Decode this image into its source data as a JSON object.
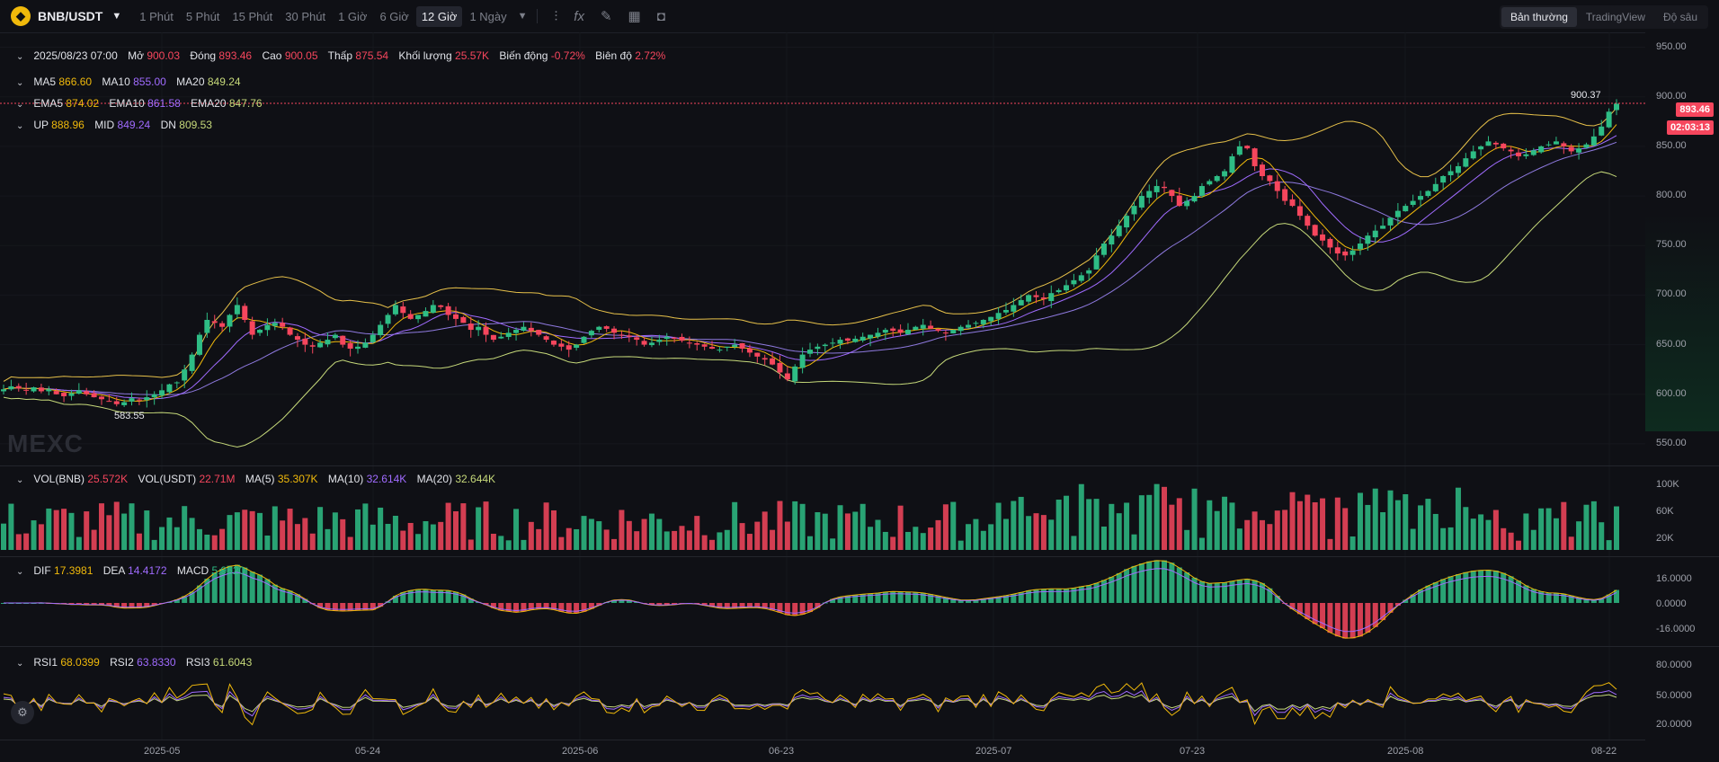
{
  "toolbar": {
    "symbol": "BNB/USDT",
    "intervals": [
      "1 Phút",
      "5 Phút",
      "15 Phút",
      "30 Phút",
      "1 Giờ",
      "6 Giờ",
      "12 Giờ",
      "1 Ngày"
    ],
    "active_interval": "12 Giờ",
    "view_tabs": [
      "Bản thường",
      "TradingView",
      "Độ sâu"
    ],
    "active_view": "Bản thường"
  },
  "ohlc": {
    "date": "2025/08/23 07:00",
    "open_label": "Mở",
    "open": "900.03",
    "close_label": "Đóng",
    "close": "893.46",
    "high_label": "Cao",
    "high": "900.05",
    "low_label": "Thấp",
    "low": "875.54",
    "vol_label": "Khối lượng",
    "vol": "25.57K",
    "change_label": "Biến động",
    "change": "-0.72%",
    "amp_label": "Biên độ",
    "amp": "2.72%"
  },
  "ma": {
    "ma5_label": "MA5",
    "ma5": "866.60",
    "ma10_label": "MA10",
    "ma10": "855.00",
    "ma20_label": "MA20",
    "ma20": "849.24"
  },
  "ema": {
    "ema5_label": "EMA5",
    "ema5": "874.02",
    "ema10_label": "EMA10",
    "ema10": "861.58",
    "ema20_label": "EMA20",
    "ema20": "847.76"
  },
  "boll": {
    "up_label": "UP",
    "up": "888.96",
    "mid_label": "MID",
    "mid": "849.24",
    "dn_label": "DN",
    "dn": "809.53"
  },
  "price_axis": [
    "950.00",
    "900.00",
    "850.00",
    "800.00",
    "750.00",
    "700.00",
    "650.00",
    "600.00",
    "550.00"
  ],
  "last_price": "893.46",
  "countdown": "02:03:13",
  "high_annot": "900.37",
  "low_annot": "583.55",
  "watermark": "MEXC",
  "volume": {
    "vol_bnb_label": "VOL(BNB)",
    "vol_bnb": "25.572K",
    "vol_usdt_label": "VOL(USDT)",
    "vol_usdt": "22.71M",
    "ma5_label": "MA(5)",
    "ma5": "35.307K",
    "ma10_label": "MA(10)",
    "ma10": "32.614K",
    "ma20_label": "MA(20)",
    "ma20": "32.644K",
    "axis": [
      "100K",
      "60K",
      "20K"
    ]
  },
  "macd": {
    "dif_label": "DIF",
    "dif": "17.3981",
    "dea_label": "DEA",
    "dea": "14.4172",
    "macd_label": "MACD",
    "macd": "5.9620",
    "axis": [
      "16.0000",
      "0.0000",
      "-16.0000"
    ]
  },
  "rsi": {
    "rsi1_label": "RSI1",
    "rsi1": "68.0399",
    "rsi2_label": "RSI2",
    "rsi2": "63.8330",
    "rsi3_label": "RSI3",
    "rsi3": "61.6043",
    "axis": [
      "80.0000",
      "50.0000",
      "20.0000"
    ]
  },
  "dates": [
    "2025-05",
    "05-24",
    "2025-06",
    "06-23",
    "2025-07",
    "07-23",
    "2025-08",
    "08-22"
  ],
  "colors": {
    "up": "#2ebd85",
    "down": "#f6465d",
    "ma5": "#f0b90b",
    "ma10": "#a06bff",
    "ma20": "#c6d97a",
    "boll": "#e7c14a"
  },
  "chart_data": {
    "type": "candlestick",
    "ylim": [
      530,
      965
    ],
    "closes": [
      605,
      608,
      606,
      604,
      607,
      603,
      605,
      600,
      598,
      601,
      604,
      600,
      597,
      595,
      593,
      590,
      592,
      596,
      594,
      597,
      600,
      604,
      610,
      612,
      625,
      640,
      660,
      675,
      672,
      668,
      680,
      690,
      675,
      660,
      665,
      670,
      672,
      668,
      660,
      655,
      650,
      648,
      652,
      655,
      660,
      650,
      646,
      648,
      652,
      660,
      670,
      680,
      690,
      682,
      676,
      680,
      684,
      690,
      688,
      680,
      676,
      672,
      665,
      668,
      660,
      655,
      658,
      662,
      665,
      668,
      664,
      660,
      655,
      650,
      648,
      645,
      650,
      658,
      664,
      668,
      666,
      662,
      660,
      658,
      655,
      650,
      652,
      655,
      658,
      656,
      654,
      652,
      650,
      648,
      646,
      645,
      648,
      650,
      646,
      642,
      638,
      635,
      630,
      622,
      615,
      628,
      640,
      645,
      648,
      650,
      652,
      655,
      654,
      656,
      658,
      660,
      662,
      665,
      664,
      662,
      665,
      668,
      670,
      666,
      664,
      662,
      665,
      668,
      670,
      672,
      675,
      678,
      682,
      685,
      690,
      695,
      700,
      698,
      696,
      702,
      705,
      710,
      715,
      720,
      725,
      740,
      752,
      760,
      770,
      780,
      790,
      800,
      805,
      810,
      808,
      800,
      790,
      795,
      800,
      810,
      815,
      820,
      825,
      840,
      850,
      848,
      830,
      820,
      815,
      805,
      795,
      790,
      780,
      770,
      760,
      755,
      748,
      742,
      740,
      745,
      752,
      760,
      765,
      770,
      778,
      785,
      790,
      795,
      800,
      805,
      812,
      820,
      825,
      830,
      838,
      845,
      850,
      855,
      852,
      848,
      845,
      840,
      842,
      846,
      850,
      852,
      855,
      850,
      845,
      848,
      852,
      860,
      870,
      885,
      893
    ]
  },
  "chart_dates_note_hidden": ""
}
